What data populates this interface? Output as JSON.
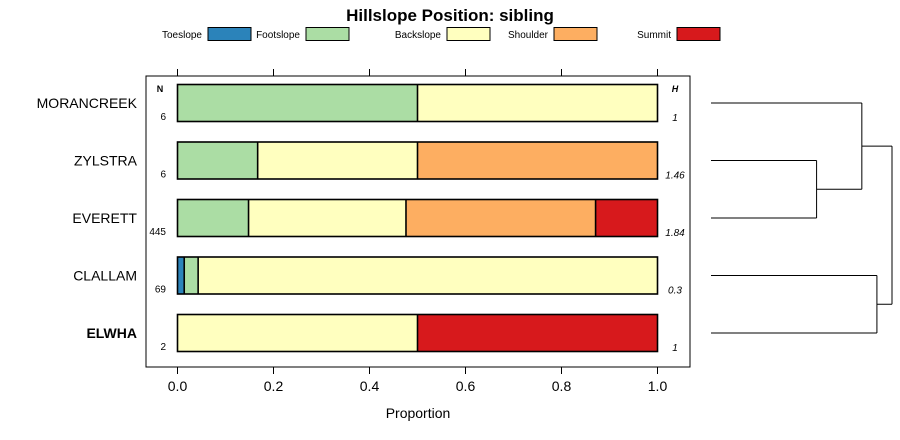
{
  "chart_data": {
    "type": "bar",
    "orientation": "horizontal",
    "stacked": true,
    "title": "Hillslope Position: sibling",
    "xlabel": "Proportion",
    "ylabel": "",
    "xlim": [
      0,
      1
    ],
    "x_ticks": [
      "0.0",
      "0.2",
      "0.4",
      "0.6",
      "0.8",
      "1.0"
    ],
    "n_header": "N",
    "h_header": "H",
    "legend_placement": "top",
    "categories": [
      "MORANCREEK",
      "ZYLSTRA",
      "EVERETT",
      "CLALLAM",
      "ELWHA"
    ],
    "highlighted_category": "ELWHA",
    "n": [
      "6",
      "6",
      "445",
      "69",
      "2"
    ],
    "h": [
      "1",
      "1.46",
      "1.84",
      "0.3",
      "1"
    ],
    "series": [
      {
        "name": "Toeslope",
        "color": "#2b83ba",
        "values": [
          0,
          0,
          0,
          0.014,
          0
        ]
      },
      {
        "name": "Footslope",
        "color": "#abdda4",
        "values": [
          0.5,
          0.167,
          0.148,
          0.029,
          0
        ]
      },
      {
        "name": "Backslope",
        "color": "#ffffbf",
        "values": [
          0.5,
          0.333,
          0.328,
          0.957,
          0.5
        ]
      },
      {
        "name": "Shoulder",
        "color": "#fdae61",
        "values": [
          0,
          0.5,
          0.395,
          0,
          0
        ]
      },
      {
        "name": "Summit",
        "color": "#d7191c",
        "values": [
          0,
          0,
          0.129,
          0,
          0.5
        ]
      }
    ],
    "dendrogram": {
      "leaves": [
        "MORANCREEK",
        "ZYLSTRA",
        "EVERETT",
        "CLALLAM",
        "ELWHA"
      ],
      "merges": [
        {
          "left": "ZYLSTRA",
          "right": "EVERETT",
          "height": 0.35
        },
        {
          "left": "CLALLAM",
          "right": "ELWHA",
          "height": 0.55
        },
        {
          "left": "MORANCREEK",
          "right": "ZYLSTRA+EVERETT",
          "height": 0.5
        },
        {
          "left": "MORANCREEK+ZYLSTRA+EVERETT",
          "right": "CLALLAM+ELWHA",
          "height": 0.6
        }
      ]
    }
  }
}
